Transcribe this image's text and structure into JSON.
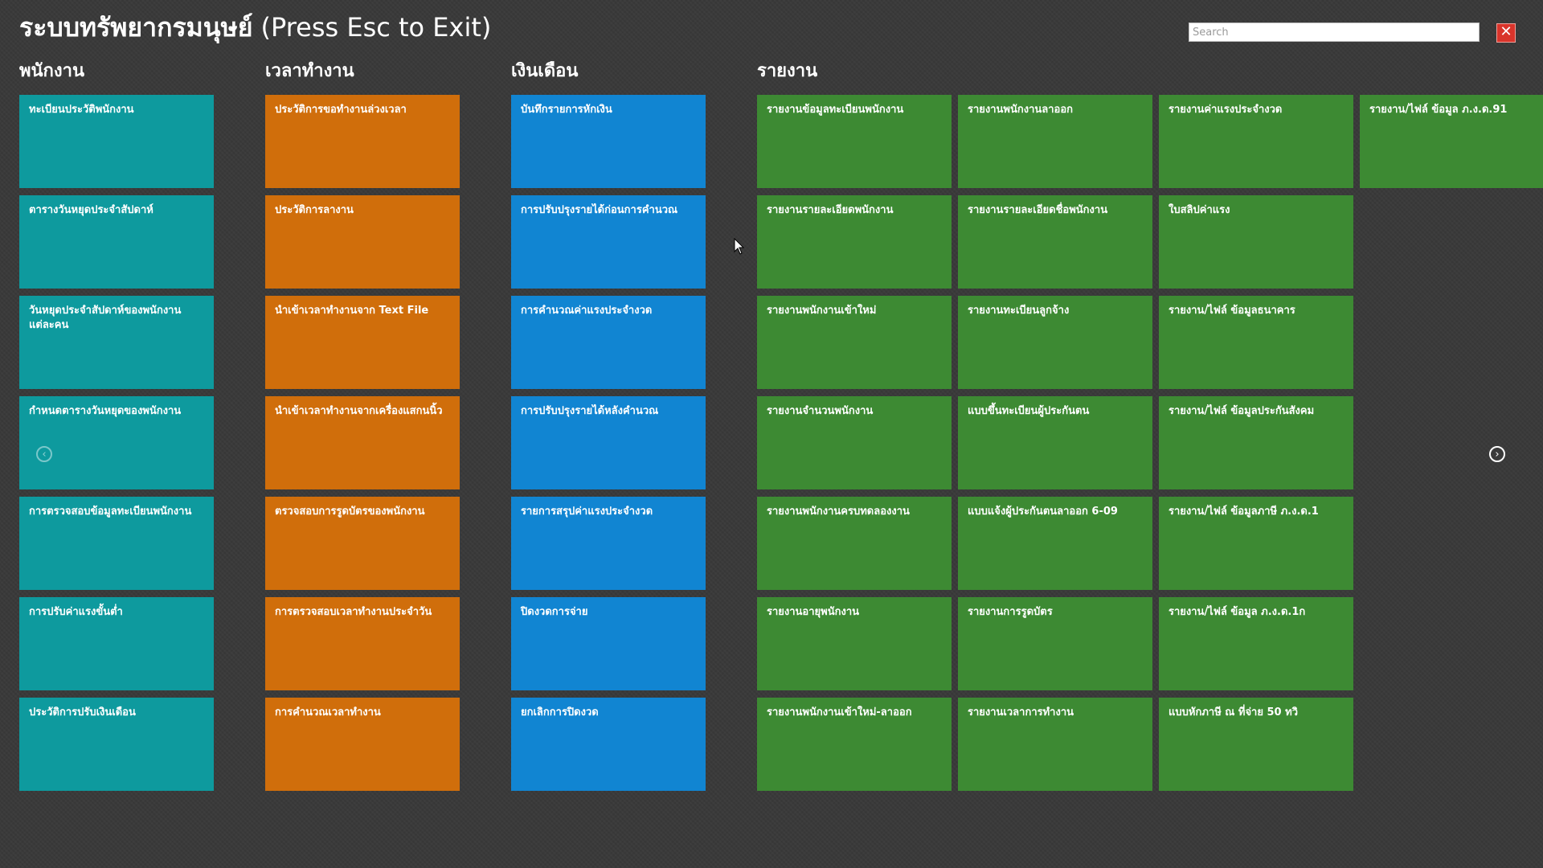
{
  "app": {
    "title": "ระบบทรัพยากรมนุษย์",
    "hint": "(Press Esc to Exit)",
    "search_placeholder": "Search",
    "close_glyph": "✕"
  },
  "icons": {
    "close": "close-icon",
    "nav_prev": "chevron-left-circle-icon",
    "nav_next": "chevron-right-circle-icon",
    "cursor": "mouse-pointer-icon"
  },
  "colors": {
    "teal": "#0e9a9e",
    "orange": "#d06e0b",
    "blue": "#1185d2",
    "green": "#3d8a33",
    "close_red": "#d9342b"
  },
  "groups": {
    "employee": {
      "title": "พนักงาน",
      "tiles": [
        "ทะเบียนประวัติพนักงาน",
        "ตารางวันหยุดประจำสัปดาห์",
        "วันหยุดประจำสัปดาห์ของพนักงานแต่ละคน",
        "กำหนดตารางวันหยุดของพนักงาน",
        "การตรวจสอบข้อมูลทะเบียนพนักงาน",
        "การปรับค่าแรงขั้นต่ำ",
        "ประวัติการปรับเงินเดือน"
      ]
    },
    "worktime": {
      "title": "เวลาทำงาน",
      "tiles": [
        "ประวัติการขอทำงานล่วงเวลา",
        "ประวัติการลางาน",
        "นำเข้าเวลาทำงานจาก Text File",
        "นำเข้าเวลาทำงานจากเครื่องแสกนนิ้ว",
        "ตรวจสอบการรูดบัตรของพนักงาน",
        "การตรวจสอบเวลาทำงานประจำวัน",
        "การคำนวณเวลาทำงาน"
      ]
    },
    "salary": {
      "title": "เงินเดือน",
      "tiles": [
        "บันทึกรายการหักเงิน",
        "การปรับปรุงรายได้ก่อนการคำนวณ",
        "การคำนวณค่าแรงประจำงวด",
        "การปรับปรุงรายได้หลังคำนวณ",
        "รายการสรุปค่าแรงประจำงวด",
        "ปิดงวดการจ่าย",
        "ยกเลิกการปิดงวด"
      ]
    },
    "reports": {
      "title": "รายงาน",
      "columns": [
        [
          "รายงานข้อมูลทะเบียนพนักงาน",
          "รายงานรายละเอียดพนักงาน",
          "รายงานพนักงานเข้าใหม่",
          "รายงานจำนวนพนักงาน",
          "รายงานพนักงานครบทดลองงาน",
          "รายงานอายุพนักงาน",
          "รายงานพนักงานเข้าใหม่-ลาออก"
        ],
        [
          "รายงานพนักงานลาออก",
          "รายงานรายละเอียดชื่อพนักงาน",
          "รายงานทะเบียนลูกจ้าง",
          "แบบขึ้นทะเบียนผู้ประกันตน",
          "แบบแจ้งผู้ประกันตนลาออก 6-09",
          "รายงานการรูดบัตร",
          "รายงานเวลาการทำงาน"
        ],
        [
          "รายงานค่าแรงประจำงวด",
          "ใบสลิปค่าแรง",
          "รายงาน/ไฟล์ ข้อมูลธนาคาร",
          "รายงาน/ไฟล์ ข้อมูลประกันสังคม",
          "รายงาน/ไฟล์ ข้อมูลภาษี ภ.ง.ด.1",
          "รายงาน/ไฟล์ ข้อมูล ภ.ง.ด.1ก",
          "แบบหักภาษี ณ ที่จ่าย 50 ทวิ"
        ],
        [
          "รายงาน/ไฟล์ ข้อมูล ภ.ง.ด.91"
        ]
      ]
    }
  }
}
